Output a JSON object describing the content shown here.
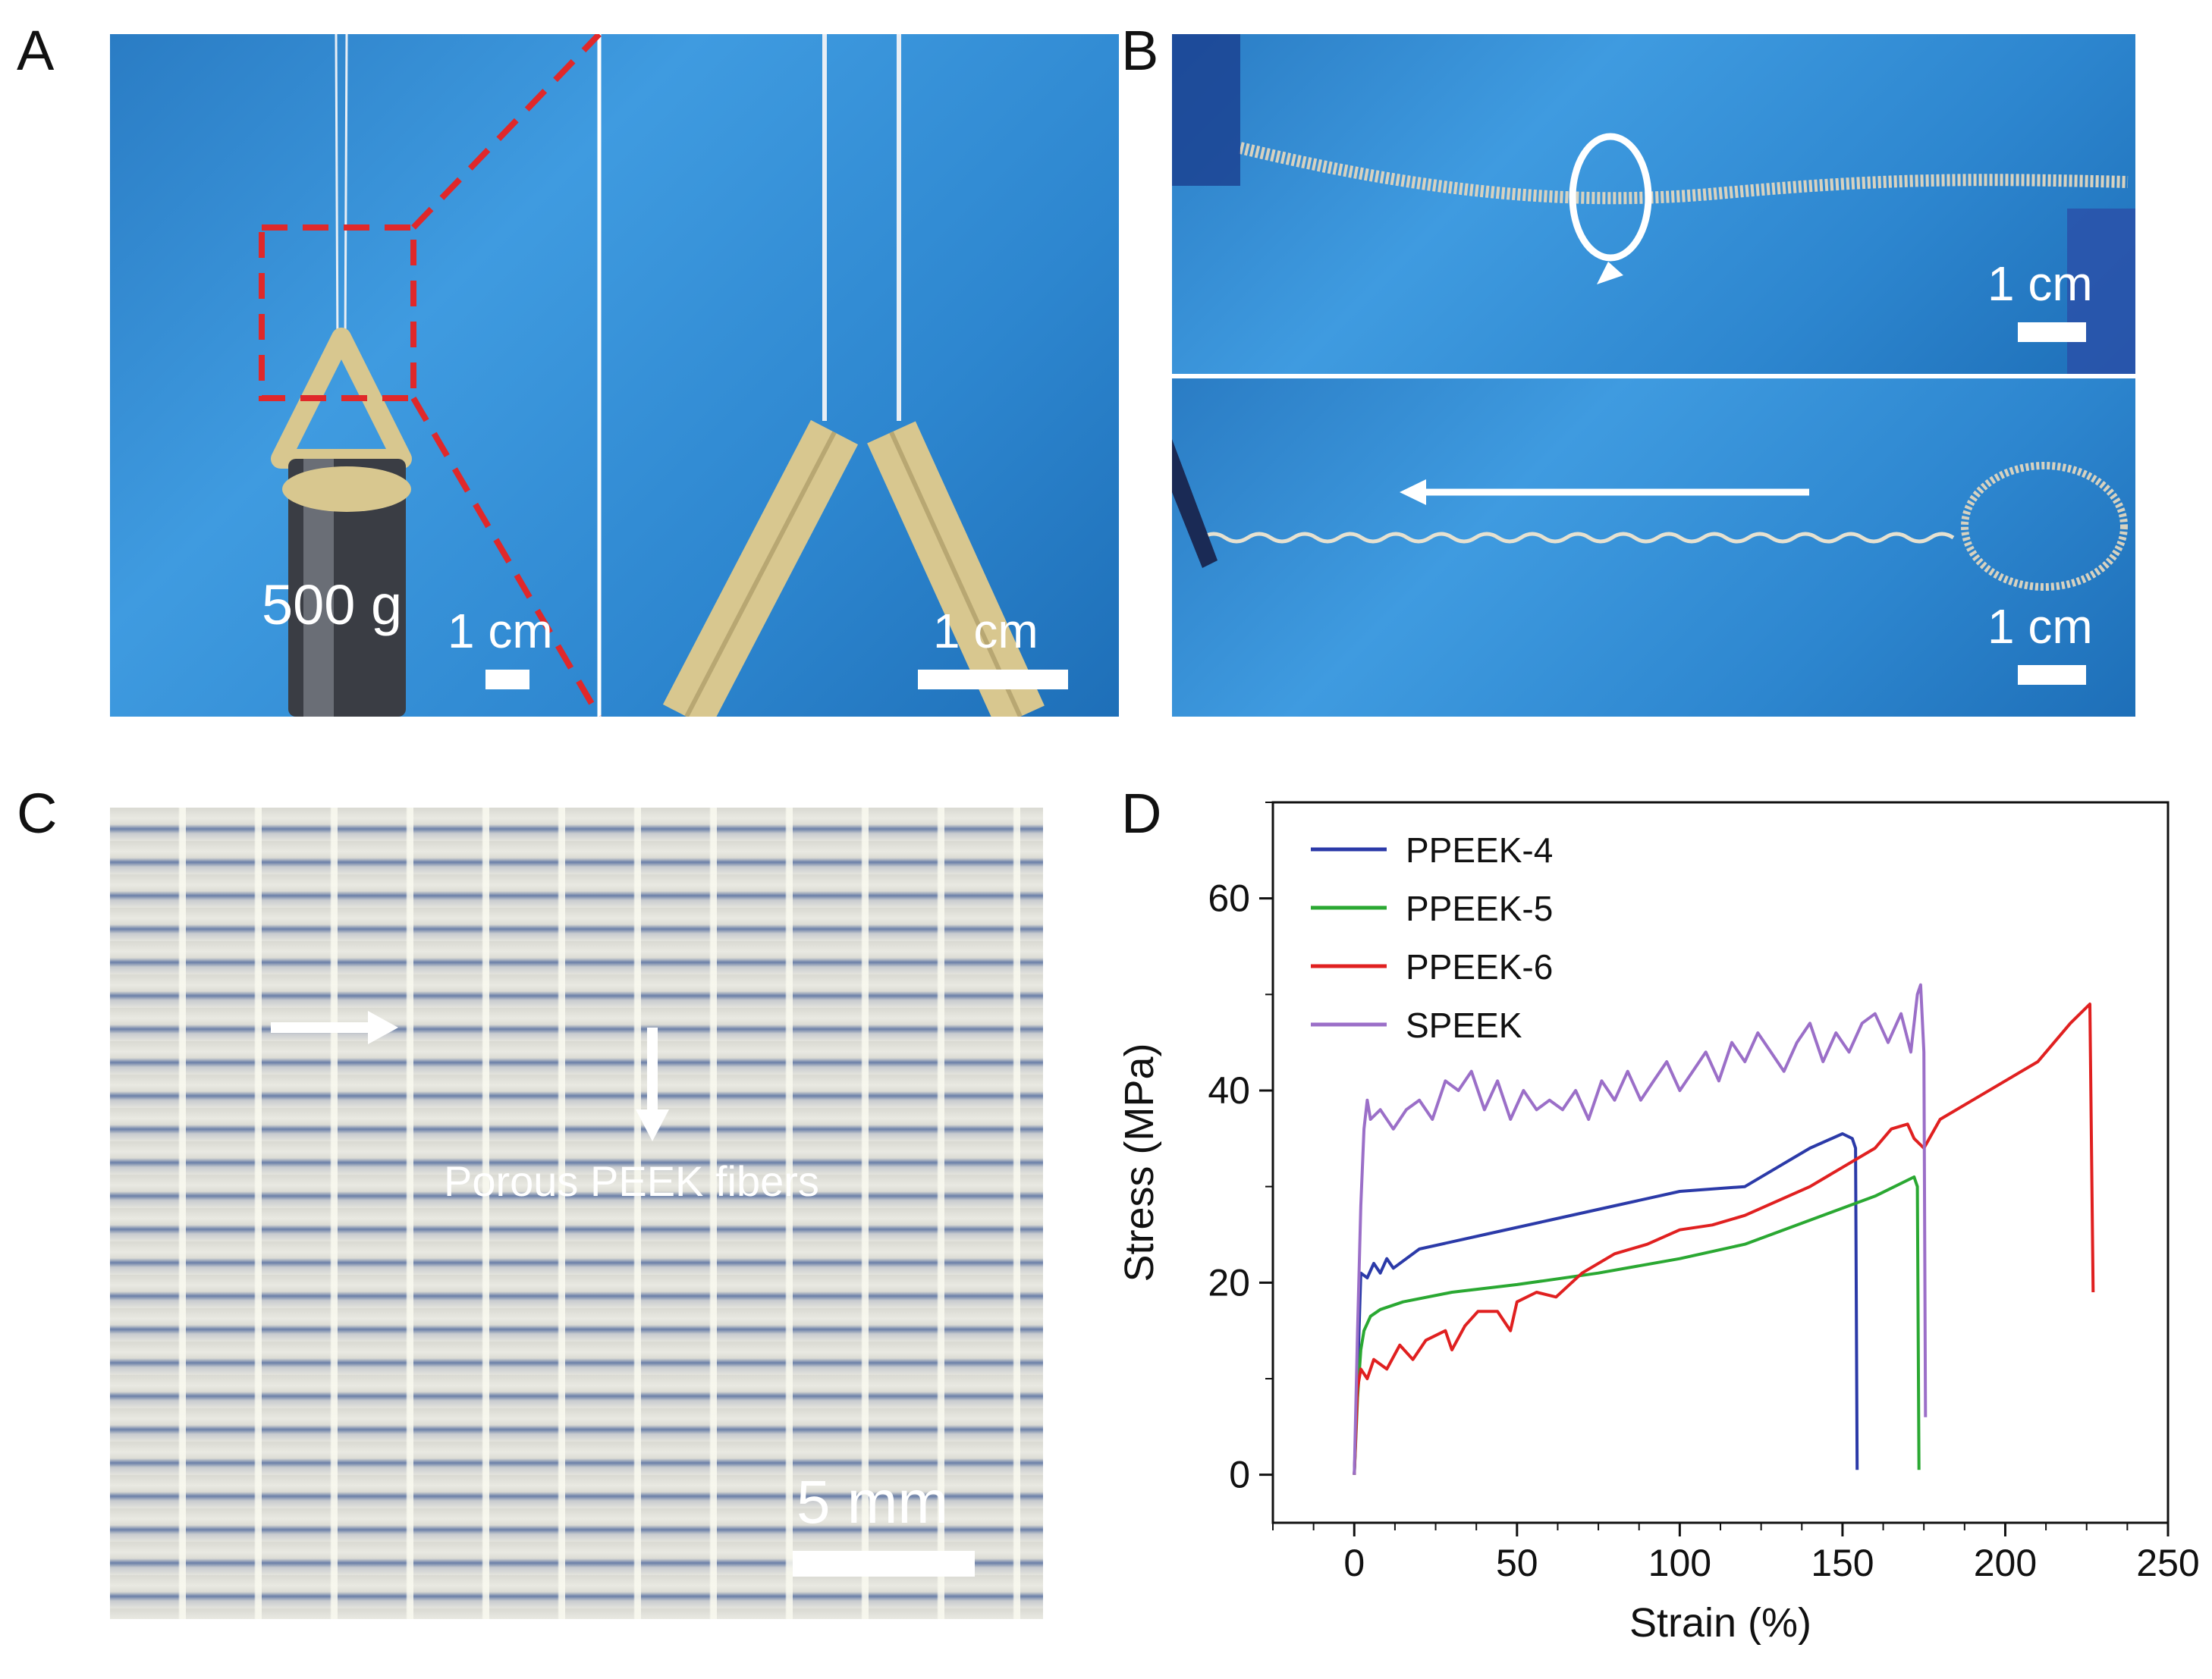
{
  "figure": {
    "panel_labels": [
      "A",
      "B",
      "C",
      "D"
    ],
    "panelA": {
      "weight_label": "500 g",
      "scale_left": "1 cm",
      "scale_right": "1 cm"
    },
    "panelB": {
      "scale_top": "1 cm",
      "scale_bottom": "1 cm"
    },
    "panelC": {
      "annotation": "Porous PEEK fibers",
      "scale": "5 mm"
    }
  },
  "colors": {
    "photo_blue": "#2f8ad4",
    "dashed_red": "#e0282a"
  },
  "chart_data": {
    "type": "line",
    "title": "",
    "xlabel": "Strain (%)",
    "ylabel": "Stress (MPa)",
    "xlim": [
      -25,
      250
    ],
    "ylim": [
      -5,
      70
    ],
    "xticks": [
      0,
      50,
      100,
      150,
      200,
      250
    ],
    "yticks": [
      0,
      20,
      40,
      60
    ],
    "legend_position": "top-left",
    "series": [
      {
        "name": "PPEEK-4",
        "color": "#2b3aa8",
        "x": [
          0,
          1,
          2,
          4,
          6,
          8,
          10,
          12,
          20,
          40,
          60,
          80,
          100,
          120,
          130,
          140,
          150,
          153,
          154,
          154.5
        ],
        "y": [
          0,
          10,
          21,
          20.5,
          22,
          21,
          22.5,
          21.5,
          23.5,
          25,
          26.5,
          28,
          29.5,
          30,
          32,
          34,
          35.5,
          35,
          34,
          0.5
        ]
      },
      {
        "name": "PPEEK-5",
        "color": "#2aa832",
        "x": [
          0,
          1,
          2,
          3,
          5,
          8,
          15,
          30,
          50,
          75,
          100,
          120,
          140,
          160,
          172,
          173,
          173.5
        ],
        "y": [
          0,
          8,
          13,
          15,
          16.5,
          17.2,
          18,
          19,
          19.8,
          21,
          22.5,
          24,
          26.5,
          29,
          31,
          30,
          0.5
        ]
      },
      {
        "name": "PPEEK-6",
        "color": "#e02020",
        "x": [
          0,
          1,
          2,
          4,
          6,
          10,
          14,
          18,
          22,
          28,
          30,
          34,
          38,
          44,
          48,
          50,
          56,
          62,
          70,
          80,
          90,
          100,
          110,
          120,
          130,
          140,
          150,
          160,
          165,
          170,
          172,
          175,
          180,
          190,
          200,
          210,
          220,
          226,
          227
        ],
        "y": [
          0,
          9,
          11,
          10,
          12,
          11,
          13.5,
          12,
          14,
          15,
          13,
          15.5,
          17,
          17,
          15,
          18,
          19,
          18.5,
          21,
          23,
          24,
          25.5,
          26,
          27,
          28.5,
          30,
          32,
          34,
          36,
          36.5,
          35,
          34,
          37,
          39,
          41,
          43,
          47,
          49,
          19
        ]
      },
      {
        "name": "SPEEK",
        "color": "#9b6fc8",
        "x": [
          0,
          1,
          2,
          3,
          4,
          5,
          8,
          12,
          16,
          20,
          24,
          28,
          32,
          36,
          40,
          44,
          48,
          52,
          56,
          60,
          64,
          68,
          72,
          76,
          80,
          84,
          88,
          92,
          96,
          100,
          104,
          108,
          112,
          116,
          120,
          124,
          128,
          132,
          136,
          140,
          144,
          148,
          152,
          156,
          160,
          164,
          168,
          171,
          173,
          174,
          175,
          175.5
        ],
        "y": [
          0,
          15,
          28,
          36,
          39,
          37,
          38,
          36,
          38,
          39,
          37,
          41,
          40,
          42,
          38,
          41,
          37,
          40,
          38,
          39,
          38,
          40,
          37,
          41,
          39,
          42,
          39,
          41,
          43,
          40,
          42,
          44,
          41,
          45,
          43,
          46,
          44,
          42,
          45,
          47,
          43,
          46,
          44,
          47,
          48,
          45,
          48,
          44,
          50,
          51,
          44,
          6
        ]
      }
    ]
  }
}
